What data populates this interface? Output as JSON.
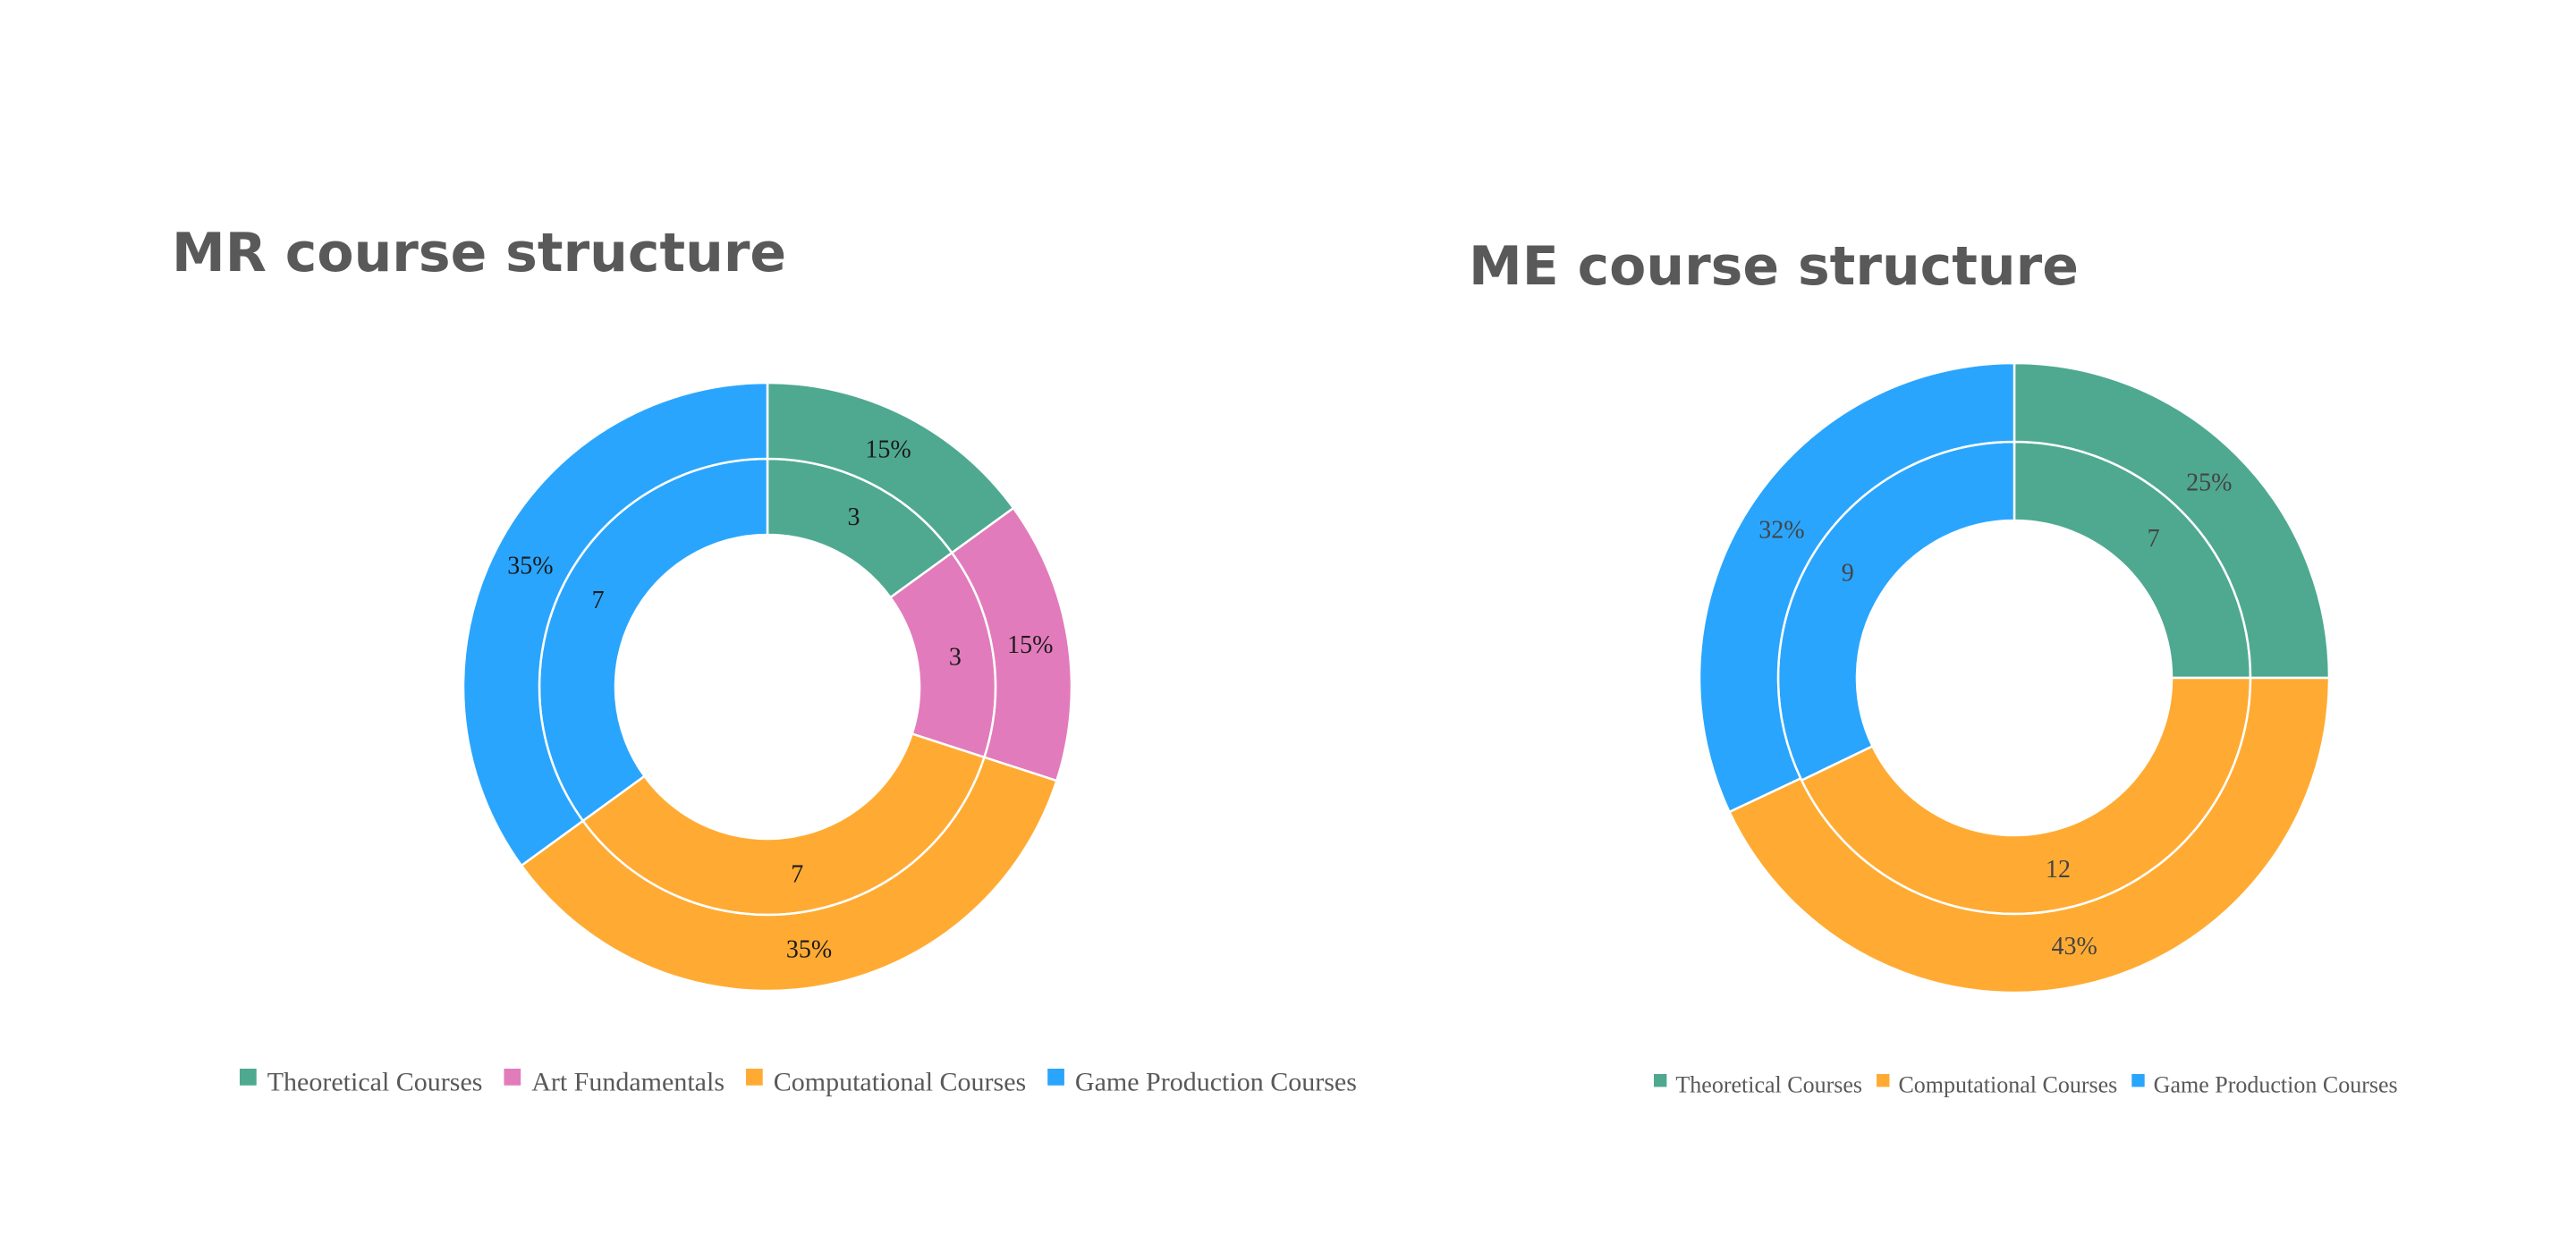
{
  "chart_data": [
    {
      "type": "pie",
      "variant": "nested-donut",
      "title": "MR course structure",
      "categories": [
        "Theoretical Courses",
        "Art Fundamentals",
        "Computational Courses",
        "Game Production Courses"
      ],
      "colors": [
        "#4ea990",
        "#e27bbb",
        "#ffab33",
        "#2aa5fd"
      ],
      "series": [
        {
          "ring": "inner",
          "values": [
            3,
            3,
            7,
            7
          ],
          "labels": [
            "3",
            "3",
            "7",
            "7"
          ]
        },
        {
          "ring": "outer",
          "values": [
            15,
            15,
            35,
            35
          ],
          "labels": [
            "15%",
            "15%",
            "35%",
            "35%"
          ]
        }
      ],
      "legend": "bottom"
    },
    {
      "type": "pie",
      "variant": "nested-donut",
      "title": "ME course structure",
      "categories": [
        "Theoretical Courses",
        "Computational Courses",
        "Game Production Courses"
      ],
      "colors": [
        "#4ea990",
        "#ffab33",
        "#2aa5fd"
      ],
      "series": [
        {
          "ring": "inner",
          "values": [
            7,
            12,
            9
          ],
          "labels": [
            "7",
            "12",
            "9"
          ]
        },
        {
          "ring": "outer",
          "values": [
            25,
            43,
            32
          ],
          "labels": [
            "25%",
            "43%",
            "32%"
          ]
        }
      ],
      "legend": "bottom"
    }
  ]
}
